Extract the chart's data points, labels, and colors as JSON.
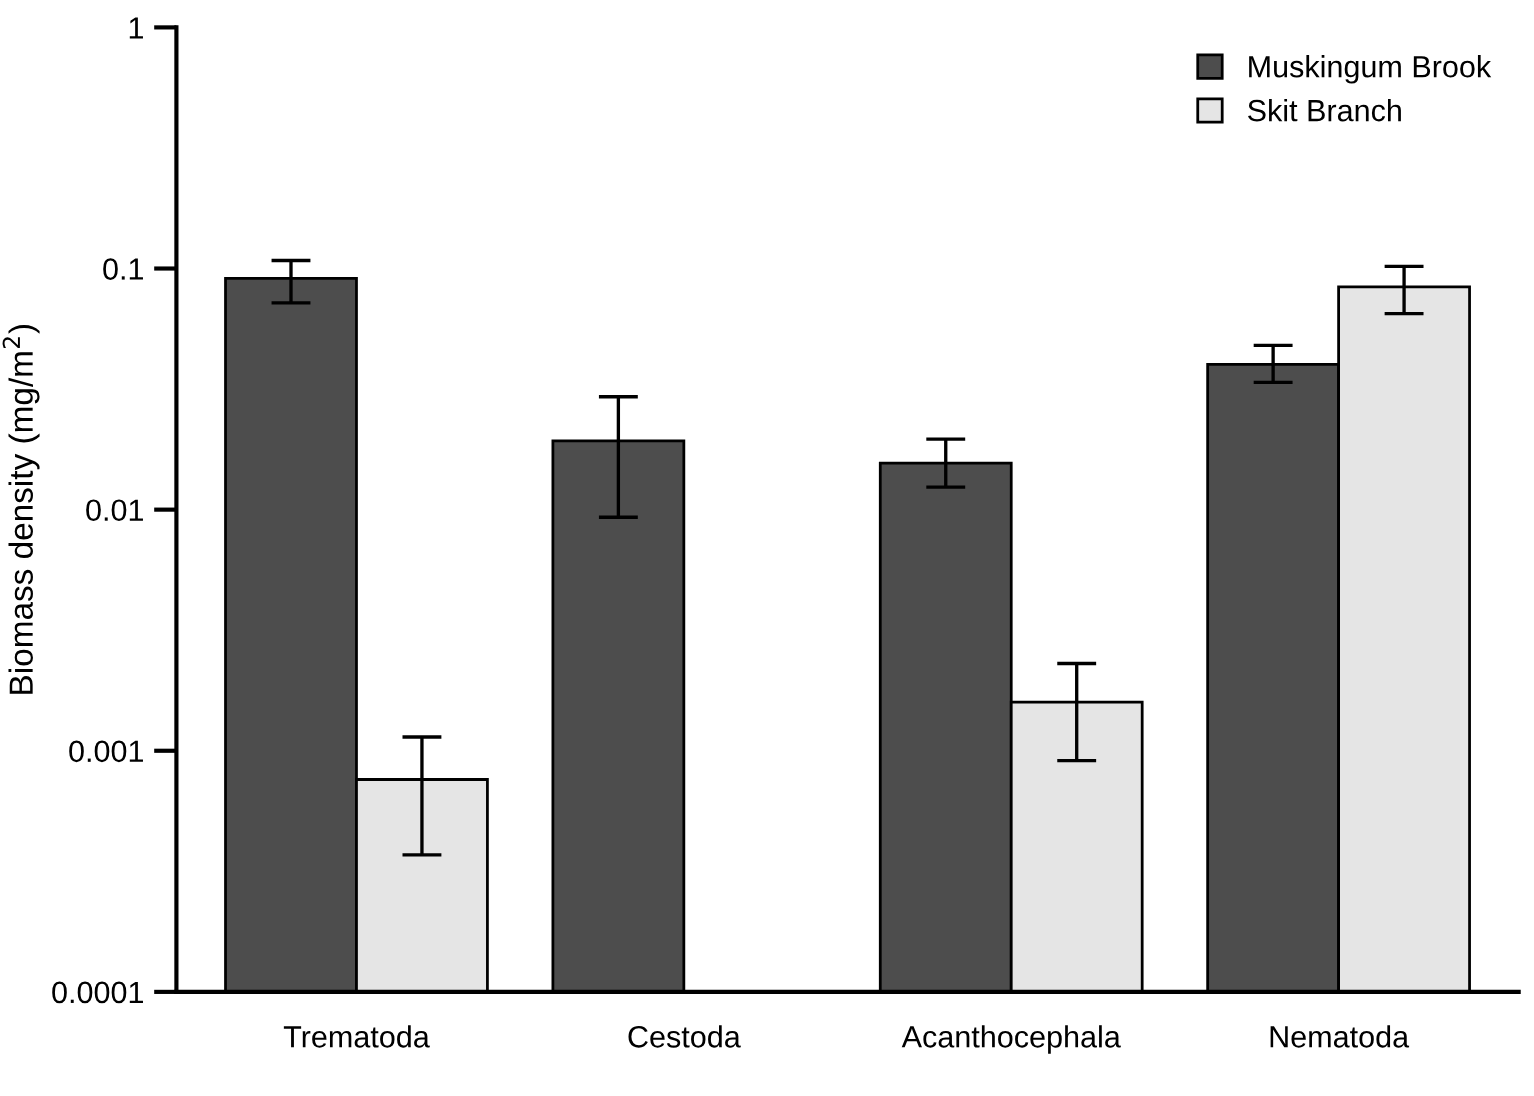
{
  "chart_data": {
    "type": "bar",
    "ylabel": "Biomass density (mg/m$^{2}$)",
    "categories": [
      "Trematoda",
      "Cestoda",
      "Acanthocephala",
      "Nematoda"
    ],
    "series": [
      {
        "name": "Muskingum Brook",
        "color": "#4d4d4d",
        "values": [
          0.091,
          0.0193,
          0.0156,
          0.04
        ],
        "errors": [
          [
            0.072,
            0.108
          ],
          [
            0.0093,
            0.0294
          ],
          [
            0.0124,
            0.0196
          ],
          [
            0.0337,
            0.048
          ]
        ]
      },
      {
        "name": "Skit Branch",
        "color": "#e5e5e5",
        "values": [
          0.00076,
          null,
          0.00159,
          0.084
        ],
        "errors": [
          [
            0.00037,
            0.00114
          ],
          null,
          [
            0.00091,
            0.0023
          ],
          [
            0.065,
            0.102
          ]
        ]
      }
    ],
    "log": "y",
    "ylim": [
      0.0001,
      1
    ],
    "yticks": [
      0.0001,
      0.001,
      0.01,
      0.1,
      1
    ],
    "grid": false,
    "legend": "top right"
  }
}
